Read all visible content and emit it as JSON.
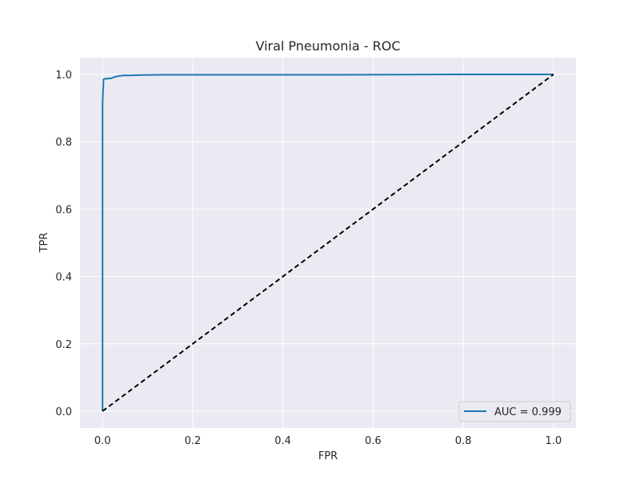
{
  "chart_data": {
    "type": "line",
    "title": "Viral Pneumonia - ROC",
    "xlabel": "FPR",
    "ylabel": "TPR",
    "xlim": [
      -0.05,
      1.05
    ],
    "ylim": [
      -0.05,
      1.05
    ],
    "xticks": [
      0.0,
      0.2,
      0.4,
      0.6,
      0.8,
      1.0
    ],
    "yticks": [
      0.0,
      0.2,
      0.4,
      0.6,
      0.8,
      1.0
    ],
    "xtick_labels": [
      "0.0",
      "0.2",
      "0.4",
      "0.6",
      "0.8",
      "1.0"
    ],
    "ytick_labels": [
      "0.0",
      "0.2",
      "0.4",
      "0.6",
      "0.8",
      "1.0"
    ],
    "grid": true,
    "legend": {
      "position": "lower-right"
    },
    "series": [
      {
        "name": "AUC = 0.999",
        "color": "#1f77b4",
        "style": "solid",
        "x": [
          0.0,
          0.0,
          0.0,
          0.0,
          0.001,
          0.002,
          0.002,
          0.005,
          0.008,
          0.012,
          0.018,
          0.022,
          0.028,
          0.035,
          0.045,
          0.06,
          0.08,
          0.13,
          0.3,
          0.5,
          0.78,
          1.0
        ],
        "y": [
          0.0,
          0.4,
          0.8,
          0.91,
          0.95,
          0.97,
          0.985,
          0.987,
          0.987,
          0.988,
          0.988,
          0.99,
          0.993,
          0.995,
          0.997,
          0.997,
          0.998,
          0.999,
          0.999,
          0.999,
          1.0,
          1.0
        ]
      },
      {
        "name": "",
        "color": "#000000",
        "style": "dashed",
        "x": [
          0.0,
          1.0
        ],
        "y": [
          0.0,
          1.0
        ]
      }
    ]
  }
}
